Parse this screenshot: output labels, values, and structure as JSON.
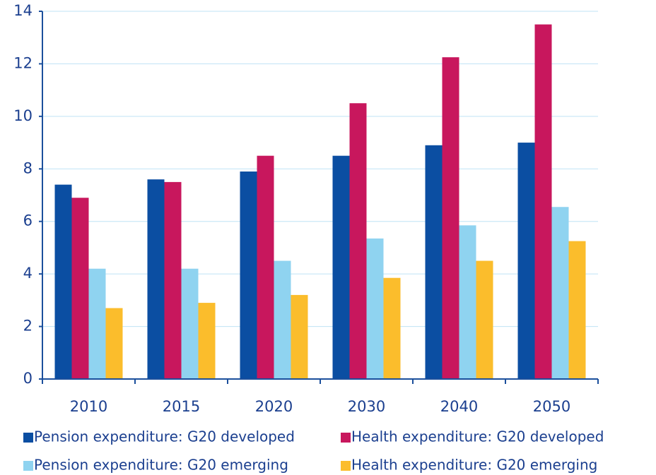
{
  "chart_data": {
    "type": "bar",
    "categories": [
      "2010",
      "2015",
      "2020",
      "2030",
      "2040",
      "2050"
    ],
    "series": [
      {
        "name": "Pension expenditure: G20 developed",
        "color": "#0b4ea2",
        "values": [
          7.4,
          7.6,
          7.9,
          8.5,
          8.9,
          9.0
        ]
      },
      {
        "name": "Health expenditure: G20 developed",
        "color": "#c8175d",
        "values": [
          6.9,
          7.5,
          8.5,
          10.5,
          12.25,
          13.5
        ]
      },
      {
        "name": "Pension expenditure: G20 emerging",
        "color": "#8fd3f0",
        "values": [
          4.2,
          4.2,
          4.5,
          5.35,
          5.85,
          6.55
        ]
      },
      {
        "name": "Health expenditure: G20 emerging",
        "color": "#fbbd2c",
        "values": [
          2.7,
          2.9,
          3.2,
          3.85,
          4.5,
          5.25
        ]
      }
    ],
    "ylim": [
      0,
      14
    ],
    "yticks": [
      0,
      2,
      4,
      6,
      8,
      10,
      12,
      14
    ],
    "grid": true,
    "legend": "bottom"
  }
}
